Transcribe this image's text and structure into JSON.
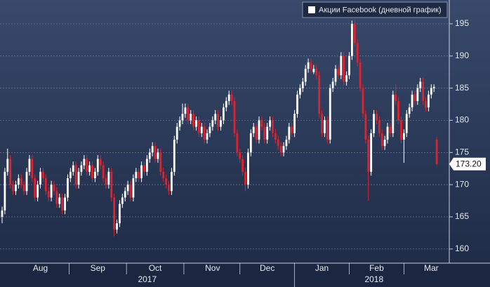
{
  "chart_data": {
    "type": "candlestick",
    "series_name": "Акции Facebook (дневной график)",
    "up_color": "#ffffff",
    "down_color": "#e3202b",
    "ylim": [
      157.8,
      198.7
    ],
    "yticks": [
      160,
      165,
      170,
      175,
      180,
      185,
      190,
      195
    ],
    "grid": true,
    "year_labels": [
      "2017",
      "2018"
    ],
    "last_price": {
      "value": 173.2,
      "label": "173.20"
    },
    "categories": [
      null,
      null,
      null,
      null,
      null,
      null,
      null,
      null,
      null,
      null,
      null,
      null,
      null,
      null,
      "Aug",
      null,
      null,
      null,
      null,
      null,
      null,
      null,
      null,
      null,
      null,
      null,
      null,
      null,
      null,
      null,
      null,
      null,
      null,
      null,
      null,
      "Sep",
      null,
      null,
      null,
      null,
      null,
      null,
      null,
      null,
      null,
      null,
      null,
      null,
      null,
      null,
      null,
      null,
      null,
      null,
      null,
      null,
      "Oct",
      null,
      null,
      null,
      null,
      null,
      null,
      null,
      null,
      null,
      null,
      null,
      null,
      null,
      null,
      null,
      null,
      null,
      null,
      null,
      null,
      "Nov",
      null,
      null,
      null,
      null,
      null,
      null,
      null,
      null,
      null,
      null,
      null,
      null,
      null,
      null,
      null,
      null,
      null,
      null,
      null,
      "Dec",
      null,
      null,
      null,
      null,
      null,
      null,
      null,
      null,
      null,
      null,
      null,
      null,
      null,
      null,
      null,
      null,
      null,
      null,
      null,
      "Jan",
      null,
      null,
      null,
      null,
      null,
      null,
      null,
      null,
      null,
      null,
      null,
      null,
      null,
      null,
      null,
      null,
      null,
      null,
      null,
      "Feb",
      null,
      null,
      null,
      null,
      null,
      null,
      null,
      null,
      null,
      null,
      null,
      null,
      null,
      null,
      null,
      null,
      null,
      null,
      null,
      "Mar",
      null,
      null
    ],
    "ohlc": [
      [
        165,
        166.6,
        164,
        166
      ],
      [
        166,
        172.6,
        165.4,
        172
      ],
      [
        172,
        175.6,
        171.4,
        174
      ],
      [
        174,
        174.6,
        169.4,
        170
      ],
      [
        170,
        170.6,
        168.4,
        169
      ],
      [
        169,
        170.6,
        168.4,
        170
      ],
      [
        170,
        171.6,
        169.4,
        171
      ],
      [
        171,
        171.6,
        169.4,
        170
      ],
      [
        170,
        170.6,
        168.4,
        169
      ],
      [
        169,
        172.6,
        168.4,
        172
      ],
      [
        172,
        174.6,
        171.4,
        174
      ],
      [
        174,
        174.6,
        170.4,
        171
      ],
      [
        171,
        171.6,
        167.4,
        168
      ],
      [
        168,
        170.6,
        167.4,
        170
      ],
      [
        170,
        172.6,
        169.4,
        172
      ],
      [
        172,
        172.6,
        170.4,
        171
      ],
      [
        171,
        171.6,
        168.4,
        169
      ],
      [
        169,
        169.6,
        167.4,
        168
      ],
      [
        168,
        170.6,
        167.4,
        170
      ],
      [
        170,
        170.6,
        168.4,
        169
      ],
      [
        169,
        169.6,
        166.4,
        167
      ],
      [
        167,
        168.6,
        166.4,
        168
      ],
      [
        168,
        168.6,
        165.4,
        166
      ],
      [
        166,
        168.6,
        165.4,
        168
      ],
      [
        168,
        171.6,
        167.4,
        171
      ],
      [
        171,
        172.6,
        170.4,
        172
      ],
      [
        172,
        173.6,
        171.4,
        173
      ],
      [
        173,
        173.6,
        169.4,
        170
      ],
      [
        170,
        172.6,
        169.4,
        172
      ],
      [
        172,
        173.6,
        171.4,
        173
      ],
      [
        173,
        174.6,
        172.4,
        174
      ],
      [
        174,
        174.6,
        171.4,
        172
      ],
      [
        172,
        173.6,
        171.4,
        173
      ],
      [
        173,
        173.6,
        170.4,
        171
      ],
      [
        171,
        172.6,
        170.4,
        172
      ],
      [
        172,
        174.6,
        171.4,
        174
      ],
      [
        174,
        174.6,
        172.4,
        173
      ],
      [
        173,
        173.6,
        170.4,
        171
      ],
      [
        171,
        171.6,
        169.4,
        170
      ],
      [
        170,
        172.6,
        169.4,
        172
      ],
      [
        172,
        172.6,
        167.4,
        168
      ],
      [
        168,
        168.6,
        162,
        163
      ],
      [
        163,
        164.6,
        162.4,
        164
      ],
      [
        164,
        167.6,
        163.4,
        167
      ],
      [
        167,
        168.6,
        166.4,
        168
      ],
      [
        168,
        169.6,
        167.4,
        169
      ],
      [
        169,
        170.6,
        168.4,
        170
      ],
      [
        170,
        170.6,
        167.4,
        168
      ],
      [
        168,
        171.6,
        167.4,
        171
      ],
      [
        171,
        172.6,
        170.4,
        172
      ],
      [
        172,
        172.6,
        170.4,
        171
      ],
      [
        171,
        173.6,
        170.4,
        173
      ],
      [
        173,
        173.6,
        171.4,
        172
      ],
      [
        172,
        174.6,
        171.4,
        174
      ],
      [
        174,
        175.6,
        173.4,
        175
      ],
      [
        175,
        176.6,
        174.4,
        176
      ],
      [
        176,
        176.6,
        173.4,
        174
      ],
      [
        174,
        175.6,
        173.4,
        175
      ],
      [
        175,
        175.6,
        171.4,
        172
      ],
      [
        172,
        172.6,
        170.4,
        171
      ],
      [
        171,
        171.6,
        169.4,
        170
      ],
      [
        170,
        170.6,
        168.4,
        169
      ],
      [
        169,
        172.6,
        168.4,
        172
      ],
      [
        172,
        177.6,
        171.4,
        177
      ],
      [
        177,
        179.6,
        176.4,
        179
      ],
      [
        179,
        180.6,
        178.4,
        180
      ],
      [
        180,
        182.6,
        179.4,
        181
      ],
      [
        181,
        182.6,
        180.4,
        182
      ],
      [
        182,
        182.6,
        179.4,
        180
      ],
      [
        180,
        181.6,
        179.4,
        181
      ],
      [
        181,
        181.6,
        178.4,
        179
      ],
      [
        179,
        180.6,
        178.4,
        180
      ],
      [
        180,
        180.6,
        177.4,
        178
      ],
      [
        178,
        179.6,
        177.4,
        179
      ],
      [
        179,
        179.6,
        176.4,
        177
      ],
      [
        177,
        178.6,
        176.4,
        178
      ],
      [
        178,
        179.6,
        177.4,
        179
      ],
      [
        179,
        180.6,
        178.4,
        180
      ],
      [
        180,
        181.6,
        179.4,
        181
      ],
      [
        181,
        181.6,
        178.4,
        179
      ],
      [
        179,
        180.6,
        178.4,
        180
      ],
      [
        180,
        182.6,
        179.4,
        182
      ],
      [
        182,
        183.6,
        181.4,
        183
      ],
      [
        183,
        184.6,
        182.4,
        184
      ],
      [
        184,
        184.6,
        182.4,
        183
      ],
      [
        183,
        183.6,
        177.4,
        178
      ],
      [
        178,
        178.6,
        174.4,
        175
      ],
      [
        175,
        175.6,
        173.4,
        174
      ],
      [
        174,
        174.6,
        171.4,
        172
      ],
      [
        172,
        172.6,
        169,
        170
      ],
      [
        170,
        175.6,
        169.4,
        175
      ],
      [
        175,
        178.6,
        174.4,
        178
      ],
      [
        178,
        179.6,
        177.4,
        179
      ],
      [
        179,
        179.6,
        176.4,
        177
      ],
      [
        177,
        180.6,
        176.4,
        180
      ],
      [
        180,
        180.6,
        178.4,
        179
      ],
      [
        179,
        179.6,
        176.4,
        177
      ],
      [
        177,
        179.6,
        176.4,
        179
      ],
      [
        179,
        180.6,
        178.4,
        180
      ],
      [
        180,
        180.6,
        177.4,
        178
      ],
      [
        178,
        178.6,
        176.4,
        177
      ],
      [
        177,
        177.6,
        175.4,
        176
      ],
      [
        176,
        176.6,
        174.4,
        175
      ],
      [
        175,
        176.6,
        174.4,
        176
      ],
      [
        176,
        177.6,
        175.4,
        177
      ],
      [
        177,
        179.6,
        176.4,
        179
      ],
      [
        179,
        179.6,
        177.4,
        178
      ],
      [
        178,
        181.6,
        177.4,
        181
      ],
      [
        181,
        184.6,
        180.4,
        184
      ],
      [
        184,
        185.6,
        183.4,
        185
      ],
      [
        185,
        186.6,
        184.4,
        186
      ],
      [
        186,
        188.6,
        185.4,
        188
      ],
      [
        188,
        189.6,
        187.4,
        189
      ],
      [
        189,
        189.6,
        187.4,
        188
      ],
      [
        187.5,
        188.6,
        187.2,
        188
      ],
      [
        188,
        188.6,
        186.4,
        187
      ],
      [
        187,
        187.6,
        180.4,
        181
      ],
      [
        181,
        181.6,
        177.4,
        178
      ],
      [
        178,
        180.6,
        177.4,
        180
      ],
      [
        180,
        180.6,
        176.4,
        177
      ],
      [
        177,
        185.6,
        176.4,
        185
      ],
      [
        185,
        186.6,
        184.4,
        186
      ],
      [
        186,
        188.6,
        185.4,
        188
      ],
      [
        188,
        188.6,
        186.4,
        187
      ],
      [
        187,
        190.6,
        186.4,
        190
      ],
      [
        190,
        190.6,
        185.4,
        186
      ],
      [
        186,
        187.6,
        185.4,
        187
      ],
      [
        187,
        190.6,
        186.4,
        190
      ],
      [
        190,
        195.5,
        189.4,
        195
      ],
      [
        195,
        195.6,
        191.4,
        192
      ],
      [
        192,
        192.6,
        188.4,
        189
      ],
      [
        189,
        189.6,
        184.4,
        185
      ],
      [
        185,
        185.6,
        180.4,
        181
      ],
      [
        181,
        181.6,
        176.4,
        177
      ],
      [
        177,
        177.6,
        167.5,
        172
      ],
      [
        172,
        178.6,
        171.4,
        178
      ],
      [
        178,
        181.6,
        177.4,
        181
      ],
      [
        181,
        181.6,
        179.4,
        180
      ],
      [
        180,
        180.6,
        177.4,
        178
      ],
      [
        178,
        178.6,
        175.4,
        176
      ],
      [
        176,
        177.6,
        175.4,
        177
      ],
      [
        177,
        179.6,
        176.4,
        179
      ],
      [
        179,
        179.6,
        177.4,
        178
      ],
      [
        178,
        184.6,
        177.4,
        184
      ],
      [
        184,
        185.6,
        182.4,
        183
      ],
      [
        183,
        183.6,
        179.4,
        180
      ],
      [
        180,
        180.6,
        176.4,
        177
      ],
      [
        177,
        178.6,
        173.4,
        178
      ],
      [
        178,
        181.6,
        177.4,
        181
      ],
      [
        181,
        182.6,
        180.4,
        182
      ],
      [
        182,
        184.6,
        181.4,
        184
      ],
      [
        184,
        184.6,
        182.4,
        183
      ],
      [
        183,
        185.6,
        182.4,
        185
      ],
      [
        185,
        186.6,
        184.4,
        186
      ],
      [
        186,
        186.6,
        182.4,
        183
      ],
      [
        183,
        183.6,
        181.4,
        182
      ],
      [
        182,
        184.6,
        181.4,
        184
      ],
      [
        184,
        185.6,
        183.4,
        185
      ],
      [
        185,
        185.6,
        184.4,
        185.2
      ],
      [
        177,
        177.4,
        173,
        173.2
      ]
    ]
  }
}
